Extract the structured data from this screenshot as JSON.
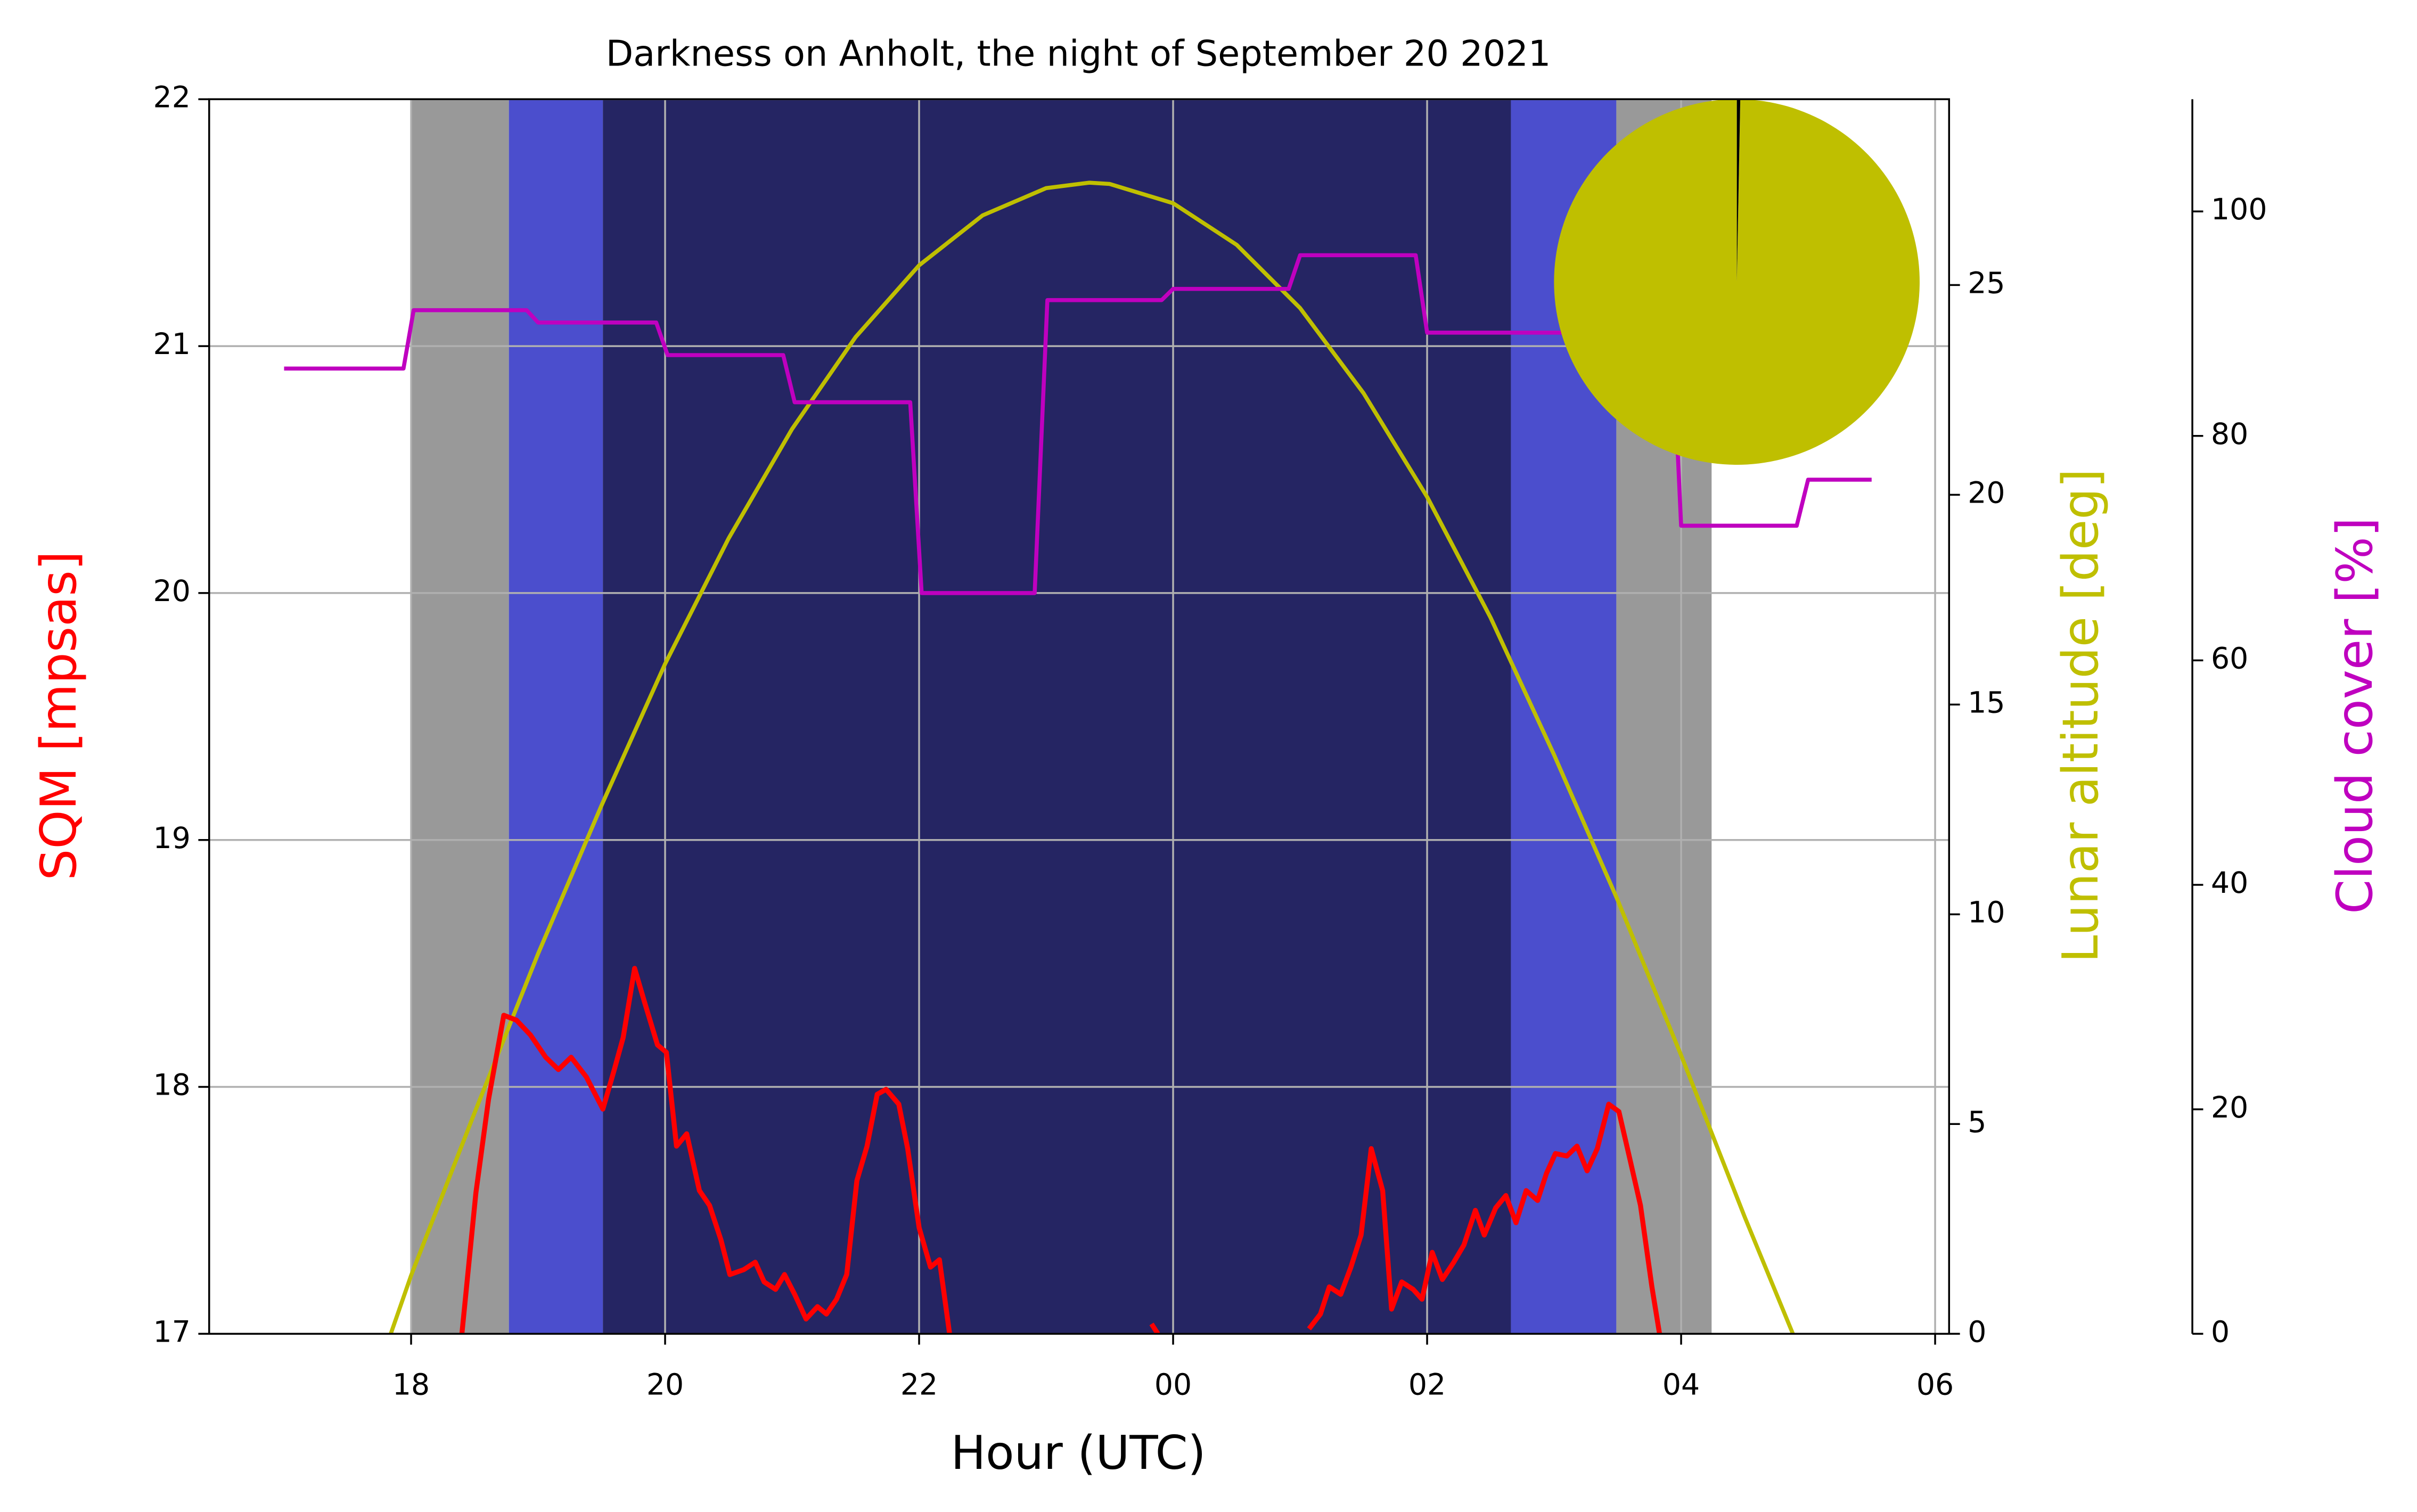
{
  "chart_data": {
    "type": "line",
    "title": "Darkness on Anholt, the night of September 20 2021",
    "xlabel": "Hour (UTC)",
    "ylabel": "SQM [mpsas]",
    "y2label": "Lunar altitude [deg]",
    "y3label": "Cloud cover [%]",
    "xlim": [
      16.41,
      30.11
    ],
    "xticks": [
      18,
      20,
      22,
      {
        "value": 24,
        "label": "00"
      },
      {
        "value": 26,
        "label": "02"
      },
      {
        "value": 28,
        "label": "04"
      },
      {
        "value": 30,
        "label": "06"
      }
    ],
    "ylim": [
      17,
      22
    ],
    "yticks": [
      17,
      18,
      19,
      20,
      21,
      22
    ],
    "y2lim": [
      0,
      29.43
    ],
    "y2ticks": [
      0,
      5,
      10,
      15,
      20,
      25
    ],
    "y3lim": [
      0,
      110
    ],
    "y3ticks": [
      0,
      20,
      40,
      60,
      80,
      100
    ],
    "grid": true,
    "bands": [
      {
        "start": 18.0,
        "end": 18.77,
        "color": "#999999"
      },
      {
        "start": 18.77,
        "end": 19.51,
        "color": "#4b4ecd"
      },
      {
        "start": 19.51,
        "end": 26.66,
        "color": "#252563"
      },
      {
        "start": 26.66,
        "end": 27.49,
        "color": "#4b4ecd"
      },
      {
        "start": 27.49,
        "end": 28.24,
        "color": "#999999"
      }
    ],
    "series": [
      {
        "color": "#bfbf00",
        "axis": "y2",
        "x": [
          17.84,
          18,
          18.5,
          19,
          19.5,
          20,
          20.5,
          21,
          21.5,
          22,
          22.5,
          23,
          23.34,
          23.5,
          24,
          24.5,
          25,
          25.5,
          26,
          26.5,
          27,
          27.5,
          28,
          28.5,
          28.88
        ],
        "values": [
          0,
          1.39,
          5.27,
          9.06,
          12.6,
          15.97,
          18.96,
          21.57,
          23.76,
          25.47,
          26.66,
          27.31,
          27.44,
          27.41,
          26.95,
          25.96,
          24.45,
          22.42,
          19.95,
          17.07,
          13.8,
          10.34,
          6.64,
          2.79,
          0
        ]
      },
      {
        "color": "#bf00bf",
        "axis": "y3",
        "x": [
          17.0,
          17.94,
          18.02,
          18.91,
          19.0,
          19.93,
          20.02,
          20.93,
          21.02,
          21.93,
          22.02,
          22.91,
          23.01,
          23.91,
          24.0,
          24.91,
          25.0,
          25.91,
          26.0,
          27.93,
          28.0,
          28.91,
          29.0,
          29.5
        ],
        "values": [
          86.0,
          86.0,
          91.2,
          91.2,
          90.1,
          90.1,
          87.2,
          87.2,
          83.0,
          83.0,
          66.0,
          66.0,
          92.1,
          92.1,
          93.1,
          93.1,
          96.1,
          96.1,
          89.2,
          89.2,
          72.0,
          72.0,
          76.1,
          76.1
        ]
      },
      {
        "color": "#ff0000",
        "axis": "y",
        "x": [
          18.4,
          18.51,
          18.61,
          18.73,
          18.83,
          18.94,
          19.06,
          19.16,
          19.26,
          19.38,
          19.51,
          19.6,
          19.67,
          19.76,
          19.84,
          19.94,
          20.01,
          20.09,
          20.17,
          20.27,
          20.35,
          20.44,
          20.51,
          20.62,
          20.71,
          20.78,
          20.87,
          20.94,
          21.02,
          21.11,
          21.2,
          21.27,
          21.35,
          21.43,
          21.51,
          21.59,
          21.67,
          21.74,
          21.84,
          21.91,
          22.0,
          22.09,
          22.16,
          22.24,
          23.0,
          23.83,
          23.88,
          24.5,
          25.07,
          25.16,
          25.23,
          25.32,
          25.4,
          25.48,
          25.56,
          25.65,
          25.72,
          25.8,
          25.89,
          25.96,
          26.04,
          26.12,
          26.21,
          26.29,
          26.38,
          26.45,
          26.54,
          26.62,
          26.7,
          26.78,
          26.87,
          26.94,
          27.01,
          27.1,
          27.18,
          27.26,
          27.34,
          27.43,
          27.51,
          27.6,
          27.68,
          27.77,
          27.83
        ],
        "values": [
          17.0,
          17.57,
          17.95,
          18.29,
          18.27,
          18.21,
          18.12,
          18.07,
          18.12,
          18.04,
          17.91,
          18.07,
          18.2,
          18.48,
          18.34,
          18.17,
          18.14,
          17.76,
          17.81,
          17.58,
          17.52,
          17.38,
          17.24,
          17.26,
          17.29,
          17.21,
          17.18,
          17.24,
          17.16,
          17.06,
          17.11,
          17.08,
          17.14,
          17.24,
          17.62,
          17.76,
          17.97,
          17.99,
          17.93,
          17.75,
          17.43,
          17.27,
          17.3,
          17.0,
          null,
          17.04,
          17.0,
          null,
          17.02,
          17.08,
          17.19,
          17.16,
          17.27,
          17.4,
          17.75,
          17.58,
          17.1,
          17.21,
          17.18,
          17.14,
          17.33,
          17.22,
          17.29,
          17.36,
          17.5,
          17.4,
          17.51,
          17.56,
          17.45,
          17.58,
          17.54,
          17.65,
          17.73,
          17.72,
          17.76,
          17.66,
          17.75,
          17.93,
          17.9,
          17.7,
          17.52,
          17.19,
          17.0
        ]
      }
    ],
    "pie": {
      "values": [
        99.7,
        0.3
      ],
      "colors": [
        "#bfbf00",
        "#000000"
      ]
    }
  }
}
